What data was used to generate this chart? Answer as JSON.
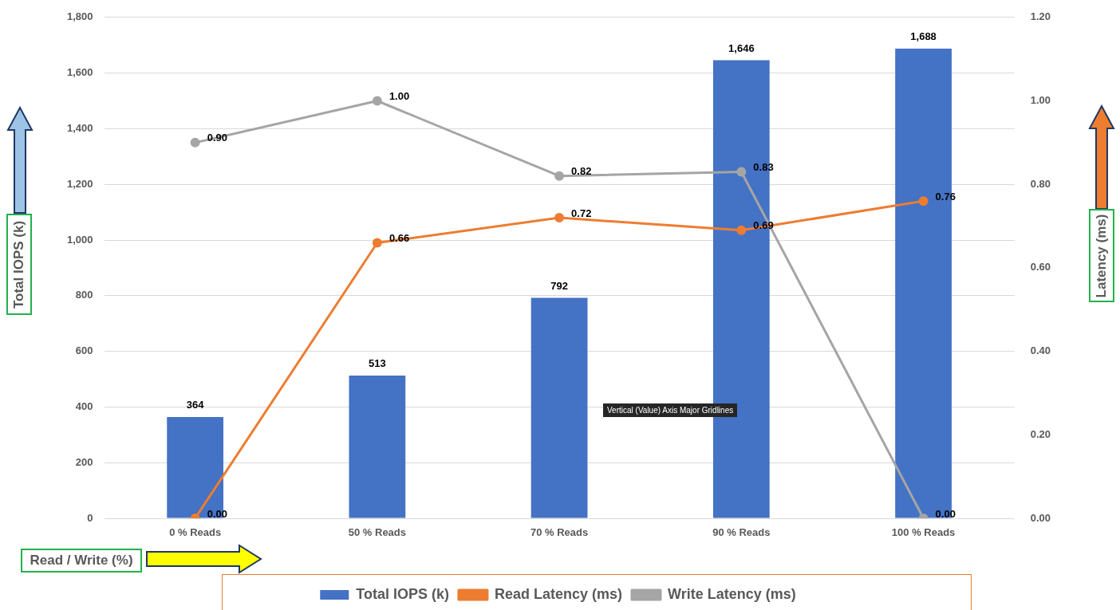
{
  "chart_data": {
    "type": "bar",
    "categories": [
      "0 % Reads",
      "50 % Reads",
      "70 % Reads",
      "90 % Reads",
      "100 % Reads"
    ],
    "xlabel": "Read / Write (%)",
    "ylabel": "Total IOPS (k)",
    "y2label": "Latency (ms)",
    "series": [
      {
        "name": "Total IOPS (k)",
        "color": "#4472c4",
        "values": [
          364,
          513,
          792,
          1646,
          1688
        ],
        "value_labels": [
          "364",
          "513",
          "792",
          "1,646",
          "1,688"
        ]
      },
      {
        "name": "Read Latency (ms)",
        "type": "line",
        "axis": "y2",
        "color": "#ed7d31",
        "values": [
          0.0,
          0.66,
          0.72,
          0.69,
          0.76
        ],
        "value_labels": [
          "0.00",
          "0.66",
          "0.72",
          "0.69",
          "0.76"
        ]
      },
      {
        "name": "Write Latency (ms)",
        "type": "line",
        "axis": "y2",
        "color": "#a5a5a5",
        "values": [
          0.9,
          1.0,
          0.82,
          0.83,
          0.0
        ],
        "value_labels": [
          "0.90",
          "1.00",
          "0.82",
          "0.83",
          "0.00"
        ]
      }
    ],
    "ylim": [
      0,
      1800
    ],
    "yticks": [
      0,
      200,
      400,
      600,
      800,
      {
        "value": 1000,
        "label": "1,000"
      },
      {
        "value": 1200,
        "label": "1,200"
      },
      {
        "value": 1400,
        "label": "1,400"
      },
      {
        "value": 1600,
        "label": "1,600"
      },
      {
        "value": 1800,
        "label": "1,800"
      }
    ],
    "y2lim": [
      0,
      1.2
    ],
    "y2ticks": [
      {
        "value": 0,
        "label": "0.00"
      },
      {
        "value": 0.2,
        "label": "0.20"
      },
      {
        "value": 0.4,
        "label": "0.40"
      },
      {
        "value": 0.6,
        "label": "0.60"
      },
      {
        "value": 0.8,
        "label": "0.80"
      },
      {
        "value": 1.0,
        "label": "1.00"
      },
      {
        "value": 1.2,
        "label": "1.20"
      }
    ],
    "grid": "y",
    "legend": "bottom",
    "marker": "circle",
    "annotations": [
      "Vertical (Value) Axis Major Gridlines"
    ]
  }
}
